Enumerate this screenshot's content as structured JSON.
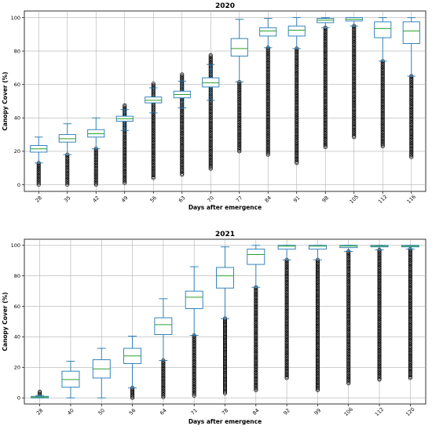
{
  "chart_data": [
    {
      "type": "boxplot",
      "title": "2020",
      "xlabel": "Days after emergence",
      "ylabel": "Canopy Cover (%)",
      "ylim": [
        -4,
        104
      ],
      "yticks": [
        0,
        20,
        40,
        60,
        80,
        100
      ],
      "grid": true,
      "box_color": "#1f77b4",
      "median_color": "#2ca02c",
      "categories": [
        "28",
        "35",
        "42",
        "49",
        "56",
        "63",
        "70",
        "77",
        "84",
        "91",
        "98",
        "105",
        "112",
        "116"
      ],
      "boxes": [
        {
          "whislo": 13,
          "q1": 19.5,
          "med": 21.5,
          "q3": 23.5,
          "whishi": 28.5,
          "fliers_min": 0,
          "fliers_max": 13
        },
        {
          "whislo": 18,
          "q1": 25.5,
          "med": 27.5,
          "q3": 30,
          "whishi": 36.5,
          "fliers_min": 0,
          "fliers_max": 18
        },
        {
          "whislo": 21.5,
          "q1": 28.5,
          "med": 30.5,
          "q3": 33,
          "whishi": 40,
          "fliers_min": 0,
          "fliers_max": 21.5
        },
        {
          "whislo": 32.5,
          "q1": 38,
          "med": 39.5,
          "q3": 41,
          "whishi": 45,
          "fliers_min": 1,
          "fliers_max": 47.5
        },
        {
          "whislo": 43,
          "q1": 49,
          "med": 50.5,
          "q3": 52.5,
          "whishi": 58,
          "fliers_min": 4,
          "fliers_max": 60.5
        },
        {
          "whislo": 46,
          "q1": 52,
          "med": 54,
          "q3": 56,
          "whishi": 62,
          "fliers_min": 6,
          "fliers_max": 66
        },
        {
          "whislo": 50.5,
          "q1": 58.5,
          "med": 61,
          "q3": 64,
          "whishi": 72,
          "fliers_min": 9.5,
          "fliers_max": 77.5
        },
        {
          "whislo": 61.5,
          "q1": 77,
          "med": 81.5,
          "q3": 87.5,
          "whishi": 99,
          "fliers_min": 20,
          "fliers_max": 61.5
        },
        {
          "whislo": 82,
          "q1": 89,
          "med": 92,
          "q3": 94,
          "whishi": 99.5,
          "fliers_min": 18,
          "fliers_max": 82
        },
        {
          "whislo": 81.5,
          "q1": 89,
          "med": 92.5,
          "q3": 95,
          "whishi": 100,
          "fliers_min": 13,
          "fliers_max": 81.5
        },
        {
          "whislo": 94,
          "q1": 97,
          "med": 98.5,
          "q3": 99.5,
          "whishi": 100,
          "fliers_min": 22.5,
          "fliers_max": 94
        },
        {
          "whislo": 95,
          "q1": 98,
          "med": 99,
          "q3": 100,
          "whishi": 100,
          "fliers_min": 28.5,
          "fliers_max": 95
        },
        {
          "whislo": 74,
          "q1": 88,
          "med": 93.5,
          "q3": 97.5,
          "whishi": 100,
          "fliers_min": 23,
          "fliers_max": 74
        },
        {
          "whislo": 65,
          "q1": 84.5,
          "med": 92,
          "q3": 97.5,
          "whishi": 100,
          "fliers_min": 16.5,
          "fliers_max": 65
        }
      ]
    },
    {
      "type": "boxplot",
      "title": "2021",
      "xlabel": "Days after emergence",
      "ylabel": "Canopy Cover (%)",
      "ylim": [
        -4,
        104
      ],
      "yticks": [
        0,
        20,
        40,
        60,
        80,
        100
      ],
      "grid": true,
      "box_color": "#1f77b4",
      "median_color": "#2ca02c",
      "categories": [
        "28",
        "40",
        "50",
        "56",
        "64",
        "71",
        "78",
        "84",
        "92",
        "99",
        "106",
        "112",
        "120"
      ],
      "boxes": [
        {
          "whislo": 0,
          "q1": 0,
          "med": 0.5,
          "q3": 1,
          "whishi": 1.5,
          "fliers_min": 1.5,
          "fliers_max": 4
        },
        {
          "whislo": 0,
          "q1": 7,
          "med": 12,
          "q3": 17.5,
          "whishi": 24,
          "fliers_min": null,
          "fliers_max": null
        },
        {
          "whislo": 0,
          "q1": 13,
          "med": 19,
          "q3": 25,
          "whishi": 32.5,
          "fliers_min": null,
          "fliers_max": null
        },
        {
          "whislo": 6.5,
          "q1": 22.5,
          "med": 27.5,
          "q3": 32.5,
          "whishi": 40.5,
          "fliers_min": 0,
          "fliers_max": 6.5
        },
        {
          "whislo": 24.5,
          "q1": 41.5,
          "med": 48,
          "q3": 52.5,
          "whishi": 65,
          "fliers_min": 0.5,
          "fliers_max": 24.5
        },
        {
          "whislo": 41,
          "q1": 58.5,
          "med": 66,
          "q3": 70,
          "whishi": 86,
          "fliers_min": 1.5,
          "fliers_max": 41
        },
        {
          "whislo": 52,
          "q1": 72,
          "med": 80,
          "q3": 85.5,
          "whishi": 99,
          "fliers_min": 3,
          "fliers_max": 52
        },
        {
          "whislo": 72.5,
          "q1": 87.5,
          "med": 94,
          "q3": 97.5,
          "whishi": 100,
          "fliers_min": 5,
          "fliers_max": 72.5
        },
        {
          "whislo": 90.5,
          "q1": 97.5,
          "med": 99.5,
          "q3": 100,
          "whishi": 100,
          "fliers_min": 13,
          "fliers_max": 90.5
        },
        {
          "whislo": 90.5,
          "q1": 97.5,
          "med": 99.5,
          "q3": 100,
          "whishi": 100,
          "fliers_min": 5,
          "fliers_max": 90.5
        },
        {
          "whislo": 96,
          "q1": 98.5,
          "med": 99.5,
          "q3": 100,
          "whishi": 100,
          "fliers_min": 9.5,
          "fliers_max": 96
        },
        {
          "whislo": 97,
          "q1": 99,
          "med": 99.5,
          "q3": 100,
          "whishi": 100,
          "fliers_min": 12,
          "fliers_max": 97
        },
        {
          "whislo": 97.5,
          "q1": 99,
          "med": 99.5,
          "q3": 100,
          "whishi": 100,
          "fliers_min": 13,
          "fliers_max": 97.5
        }
      ]
    }
  ]
}
